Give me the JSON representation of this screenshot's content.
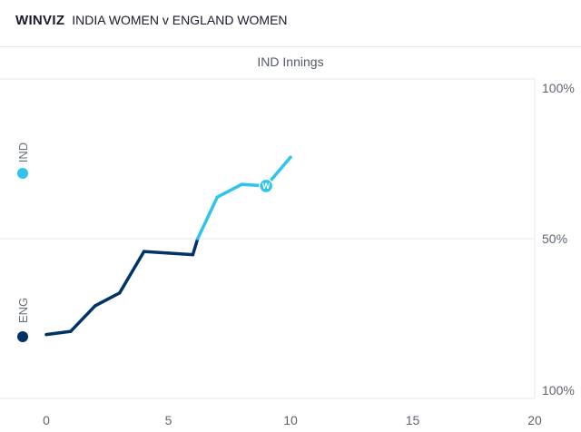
{
  "header": {
    "brand": "WINVIZ",
    "match": "INDIA WOMEN v ENGLAND WOMEN"
  },
  "innings_label": "IND Innings",
  "teams": {
    "top": {
      "label": "IND",
      "color": "#2ec4ec"
    },
    "bottom": {
      "label": "ENG",
      "color": "#003366"
    }
  },
  "chart_data": {
    "type": "line",
    "title": "",
    "xlabel": "",
    "ylabel": "",
    "x_ticks": [
      "0",
      "5",
      "10",
      "15",
      "20"
    ],
    "xlim": [
      0,
      20
    ],
    "y_tick_labels": {
      "top": "100%",
      "mid": "50%",
      "bottom": "100%"
    },
    "y_note": "win probability: IND% shown above the 50% line, ENG% below",
    "x": [
      0,
      1,
      2,
      3,
      4,
      5,
      6,
      6.2,
      7,
      8,
      9,
      10
    ],
    "ind_win_pct": [
      20,
      21,
      29,
      33,
      46,
      45.5,
      45,
      50,
      63,
      67,
      66.5,
      75.5
    ],
    "colors": {
      "ind_leading": "#2ec4ec",
      "eng_leading": "#003366"
    },
    "wickets": [
      {
        "x": 9,
        "y": 66.5,
        "label": "W"
      }
    ],
    "grid": true
  }
}
